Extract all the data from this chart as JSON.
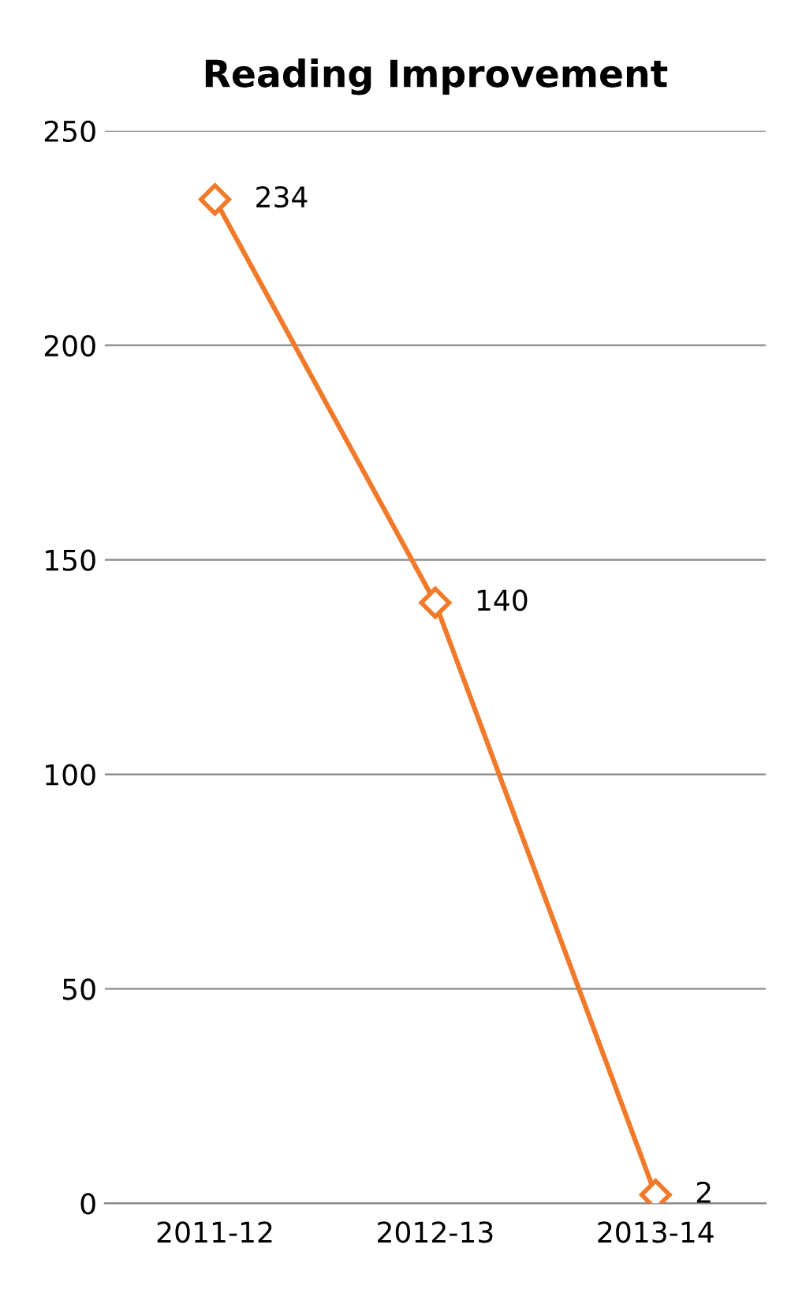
{
  "chart_data": {
    "type": "line",
    "title": "Reading Improvement",
    "categories": [
      "2011-12",
      "2012-13",
      "2013-14"
    ],
    "series": [
      {
        "color": "#f07a2a",
        "values": [
          234,
          140,
          2
        ]
      }
    ],
    "ylim": [
      0,
      250
    ],
    "yticks": [
      0,
      50,
      100,
      150,
      200,
      250
    ],
    "grid": "y",
    "marker": "diamond",
    "line_style": "solid",
    "data_labels": true,
    "legend": false
  }
}
